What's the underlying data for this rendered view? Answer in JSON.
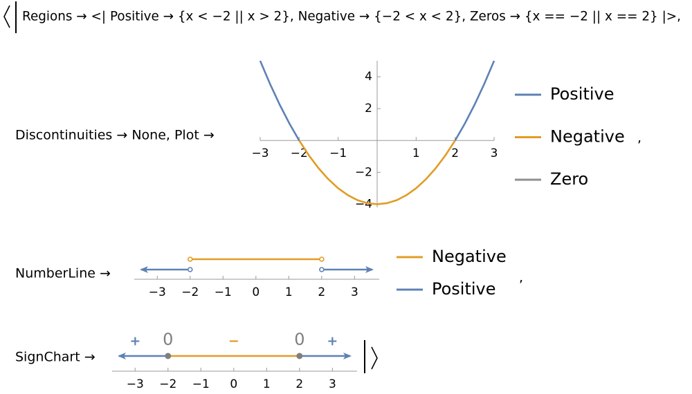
{
  "regions_line": "Regions → <| Positive → {x < −2 || x > 2}, Negative → {−2 < x < 2}, Zeros → {x == −2 || x == 2} |>,",
  "plot": {
    "label": "Discontinuities → None, Plot →",
    "type": "line",
    "xlim": [
      -3,
      3
    ],
    "ylim": [
      -4.2,
      5
    ],
    "xticks": [
      {
        "value": -3,
        "label": "−3"
      },
      {
        "value": -2,
        "label": "−2"
      },
      {
        "value": -1,
        "label": "−1"
      },
      1,
      2,
      3
    ],
    "yticks": [
      {
        "value": -4,
        "label": "−4"
      },
      {
        "value": -2,
        "label": "−2"
      },
      2,
      4
    ],
    "x": [
      -3,
      -2.75,
      -2.5,
      -2.25,
      -2,
      -1.75,
      -1.5,
      -1.25,
      -1,
      -0.75,
      -0.5,
      -0.25,
      0,
      0.25,
      0.5,
      0.75,
      1,
      1.25,
      1.5,
      1.75,
      2,
      2.25,
      2.5,
      2.75,
      3
    ],
    "series": [
      {
        "name": "Positive",
        "color": "#5e81b5",
        "values": [
          5,
          3.5625,
          2.25,
          1.0625,
          0,
          null,
          null,
          null,
          null,
          null,
          null,
          null,
          null,
          null,
          null,
          null,
          null,
          null,
          null,
          null,
          0,
          1.0625,
          2.25,
          3.5625,
          5
        ]
      },
      {
        "name": "Negative",
        "color": "#e19c24",
        "values": [
          null,
          null,
          null,
          null,
          0,
          -0.9375,
          -1.75,
          -2.4375,
          -3,
          -3.4375,
          -3.75,
          -3.9375,
          -4,
          -3.9375,
          -3.75,
          -3.4375,
          -3,
          -2.4375,
          -1.75,
          -0.9375,
          0,
          null,
          null,
          null,
          null
        ]
      },
      {
        "name": "Zero",
        "color": "#8f8f8f",
        "values": []
      }
    ],
    "separator": ","
  },
  "numberline": {
    "label": "NumberLine →",
    "xlim": [
      -3.7,
      3.75
    ],
    "xticks": [
      {
        "value": -3,
        "label": "−3"
      },
      {
        "value": -2,
        "label": "−2"
      },
      {
        "value": -1,
        "label": "−1"
      },
      0,
      1,
      2,
      3
    ],
    "series": [
      {
        "name": "Negative",
        "color": "#e19c24",
        "intervals": [
          [
            -2,
            2
          ]
        ]
      },
      {
        "name": "Positive",
        "color": "#5e81b5",
        "intervals": [
          [
            null,
            -2
          ],
          [
            2,
            null
          ]
        ]
      }
    ],
    "separator": ","
  },
  "signchart": {
    "label": "SignChart →",
    "xlim": [
      -3.7,
      3.75
    ],
    "xticks": [
      {
        "value": -3,
        "label": "−3"
      },
      {
        "value": -2,
        "label": "−2"
      },
      {
        "value": -1,
        "label": "−1"
      },
      0,
      1,
      2,
      3
    ],
    "signs": [
      {
        "label": "+",
        "color": "#5e81b5",
        "interval": [
          null,
          -2
        ]
      },
      {
        "label": "−",
        "color": "#e19c24",
        "interval": [
          -2,
          2
        ]
      },
      {
        "label": "+",
        "color": "#5e81b5",
        "interval": [
          2,
          null
        ]
      }
    ],
    "zeros": [
      {
        "value": -2,
        "label": "0"
      },
      {
        "value": 2,
        "label": "0"
      }
    ],
    "zero_color": "#7f7f7f"
  }
}
